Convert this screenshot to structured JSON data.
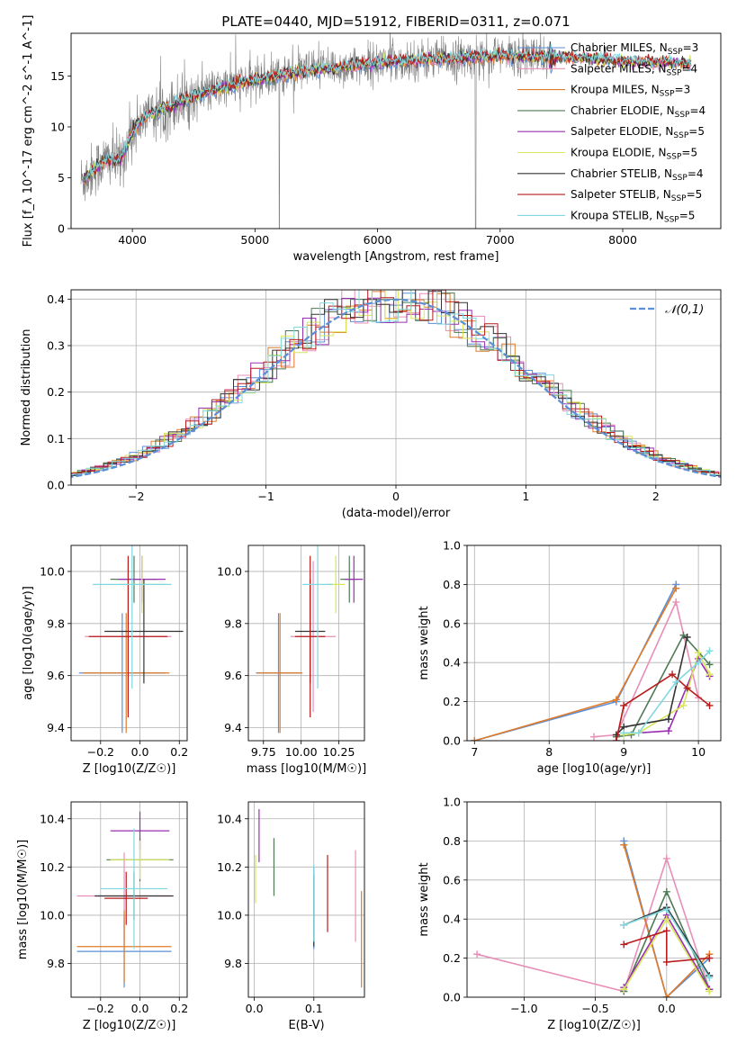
{
  "figure": {
    "title": "PLATE=0440, MJD=51912, FIBERID=0311, z=0.071"
  },
  "models": [
    {
      "name": "Chabrier MILES",
      "nssp": "3",
      "color": "#5b8fd6"
    },
    {
      "name": "Salpeter MILES",
      "nssp": "4",
      "color": "#e88fb8"
    },
    {
      "name": "Kroupa MILES",
      "nssp": "3",
      "color": "#e07b2a"
    },
    {
      "name": "Chabrier ELODIE",
      "nssp": "4",
      "color": "#4f7a56"
    },
    {
      "name": "Salpeter ELODIE",
      "nssp": "5",
      "color": "#9a2fb3"
    },
    {
      "name": "Kroupa ELODIE",
      "nssp": "5",
      "color": "#d8e65a"
    },
    {
      "name": "Chabrier STELIB",
      "nssp": "4",
      "color": "#333333"
    },
    {
      "name": "Salpeter STELIB",
      "nssp": "5",
      "color": "#b81c1c"
    },
    {
      "name": "Kroupa STELIB",
      "nssp": "5",
      "color": "#80d8e0"
    }
  ],
  "chart_data": [
    {
      "id": "spectrum",
      "type": "line",
      "xlabel": "wavelength [Angstrom, rest frame]",
      "ylabel": "Flux [f_λ 10^-17 erg cm^-2 s^-1 A^-1]",
      "xlim": [
        3500,
        8800
      ],
      "ylim": [
        0,
        19.2
      ],
      "xticks": [
        4000,
        5000,
        6000,
        7000,
        8000
      ],
      "yticks": [
        0,
        5,
        10,
        15
      ],
      "data_color": "#808080",
      "continuum": {
        "x": [
          3600,
          3700,
          3800,
          3900,
          4000,
          4100,
          4300,
          4500,
          4800,
          5000,
          5300,
          5600,
          6000,
          6300,
          6600,
          7000,
          7300,
          7600,
          8000,
          8400,
          8550
        ],
        "y": [
          4.8,
          6.0,
          6.8,
          6.6,
          9.6,
          11.0,
          12.0,
          13.0,
          14.1,
          14.6,
          15.3,
          15.7,
          16.3,
          16.6,
          16.7,
          17.0,
          16.9,
          16.8,
          16.5,
          16.3,
          16.2
        ]
      },
      "grid": false,
      "legend": "top-right"
    },
    {
      "id": "residuals",
      "type": "histogram",
      "xlabel": "(data-model)/error",
      "ylabel": "Normed distribution",
      "xlim": [
        -2.5,
        2.5
      ],
      "ylim": [
        0,
        0.42
      ],
      "xticks": [
        -2,
        -1,
        0,
        1,
        2
      ],
      "yticks": [
        0.0,
        0.1,
        0.2,
        0.3,
        0.4
      ],
      "reference": {
        "name": "𝒩(0,1)",
        "mean": 0,
        "sigma": 1,
        "color": "#5b8fd6"
      },
      "grid": true,
      "legend": "top-right"
    },
    {
      "id": "age_vs_Z",
      "type": "errorbar",
      "xlabel": "Z [log10(Z/Z☉)]",
      "ylabel": "age [log10(age/yr)]",
      "xlim": [
        -0.35,
        0.24
      ],
      "ylim": [
        9.35,
        10.1
      ],
      "xticks": [
        -0.2,
        0.0,
        0.2
      ],
      "yticks": [
        9.4,
        9.6,
        9.8,
        10.0
      ],
      "points": [
        {
          "x": -0.09,
          "xerr": 0.22,
          "y": 9.61,
          "yerr": 0.23
        },
        {
          "x": -0.06,
          "xerr": 0.22,
          "y": 9.75,
          "yerr": 0.29
        },
        {
          "x": -0.07,
          "xerr": 0.22,
          "y": 9.61,
          "yerr": 0.23
        },
        {
          "x": -0.03,
          "xerr": 0.12,
          "y": 9.97,
          "yerr": 0.09
        },
        {
          "x": 0.01,
          "xerr": 0.12,
          "y": 9.97,
          "yerr": 0.09
        },
        {
          "x": 0.01,
          "xerr": 0.12,
          "y": 9.95,
          "yerr": 0.11
        },
        {
          "x": 0.02,
          "xerr": 0.2,
          "y": 9.77,
          "yerr": 0.2
        },
        {
          "x": -0.06,
          "xerr": 0.2,
          "y": 9.75,
          "yerr": 0.31
        },
        {
          "x": -0.04,
          "xerr": 0.2,
          "y": 9.95,
          "yerr": 0.4
        }
      ],
      "grid": true
    },
    {
      "id": "age_vs_mass",
      "type": "errorbar",
      "xlabel": "mass [log10(M/M☉)]",
      "ylabel": "",
      "xlim": [
        9.65,
        10.42
      ],
      "ylim": [
        9.35,
        10.1
      ],
      "xticks": [
        9.75,
        10.0,
        10.25
      ],
      "yticks": [
        9.4,
        9.6,
        9.8,
        10.0
      ],
      "points": [
        {
          "x": 9.85,
          "xerr": 0.15,
          "y": 9.61,
          "yerr": 0.23
        },
        {
          "x": 10.08,
          "xerr": 0.15,
          "y": 9.75,
          "yerr": 0.29
        },
        {
          "x": 9.86,
          "xerr": 0.15,
          "y": 9.61,
          "yerr": 0.23
        },
        {
          "x": 10.32,
          "xerr": 0.06,
          "y": 9.97,
          "yerr": 0.09
        },
        {
          "x": 10.35,
          "xerr": 0.06,
          "y": 9.97,
          "yerr": 0.09
        },
        {
          "x": 10.23,
          "xerr": 0.06,
          "y": 9.95,
          "yerr": 0.11
        },
        {
          "x": 10.06,
          "xerr": 0.1,
          "y": 9.77,
          "yerr": 0.2
        },
        {
          "x": 10.06,
          "xerr": 0.1,
          "y": 9.75,
          "yerr": 0.31
        },
        {
          "x": 10.11,
          "xerr": 0.1,
          "y": 9.95,
          "yerr": 0.4
        }
      ],
      "grid": true
    },
    {
      "id": "weight_vs_age",
      "type": "line",
      "xlabel": "age [log10(age/yr)]",
      "ylabel": "mass weight",
      "xlim": [
        6.9,
        10.3
      ],
      "ylim": [
        0,
        1.0
      ],
      "xticks": [
        7,
        8,
        9,
        10
      ],
      "yticks": [
        0.0,
        0.2,
        0.4,
        0.6,
        0.8,
        1.0
      ],
      "series": [
        {
          "model": 0,
          "x": [
            7.0,
            8.9,
            9.7
          ],
          "y": [
            0.0,
            0.2,
            0.8
          ]
        },
        {
          "model": 1,
          "x": [
            8.6,
            8.9,
            9.7,
            10.0
          ],
          "y": [
            0.02,
            0.03,
            0.71,
            0.22
          ]
        },
        {
          "model": 2,
          "x": [
            7.0,
            8.9,
            9.7
          ],
          "y": [
            0.0,
            0.21,
            0.78
          ]
        },
        {
          "model": 3,
          "x": [
            8.9,
            9.1,
            9.8,
            10.15
          ],
          "y": [
            0.02,
            0.03,
            0.54,
            0.39
          ]
        },
        {
          "model": 4,
          "x": [
            9.2,
            9.6,
            10.0,
            10.15
          ],
          "y": [
            0.04,
            0.05,
            0.42,
            0.33
          ]
        },
        {
          "model": 5,
          "x": [
            9.0,
            9.2,
            9.8,
            10.0,
            10.15
          ],
          "y": [
            0.03,
            0.04,
            0.18,
            0.45,
            0.34
          ]
        },
        {
          "model": 6,
          "x": [
            8.9,
            9.0,
            9.6,
            9.85
          ],
          "y": [
            0.03,
            0.07,
            0.11,
            0.53
          ]
        },
        {
          "model": 7,
          "x": [
            8.9,
            9.0,
            9.65,
            9.85,
            10.15
          ],
          "y": [
            0.0,
            0.18,
            0.34,
            0.27,
            0.18
          ]
        },
        {
          "model": 8,
          "x": [
            9.0,
            9.2,
            9.7,
            10.0,
            10.15
          ],
          "y": [
            0.04,
            0.04,
            0.3,
            0.4,
            0.46
          ]
        }
      ],
      "grid": true
    },
    {
      "id": "mass_vs_Z",
      "type": "errorbar",
      "xlabel": "Z [log10(Z/Z☉)]",
      "ylabel": "mass [log10(M/M☉)]",
      "xlim": [
        -0.35,
        0.24
      ],
      "ylim": [
        9.66,
        10.47
      ],
      "xticks": [
        -0.2,
        0.0,
        0.2
      ],
      "yticks": [
        9.8,
        10.0,
        10.2,
        10.4
      ],
      "points": [
        {
          "x": -0.08,
          "xerr": 0.24,
          "y": 9.85,
          "yerr": 0.15
        },
        {
          "x": -0.08,
          "xerr": 0.24,
          "y": 10.08,
          "yerr": 0.18
        },
        {
          "x": -0.08,
          "xerr": 0.24,
          "y": 9.87,
          "yerr": 0.15
        },
        {
          "x": 0.0,
          "xerr": 0.17,
          "y": 10.23,
          "yerr": 0.09
        },
        {
          "x": 0.0,
          "xerr": 0.15,
          "y": 10.35,
          "yerr": 0.08
        },
        {
          "x": 0.0,
          "xerr": 0.15,
          "y": 10.23,
          "yerr": 0.08
        },
        {
          "x": -0.03,
          "xerr": 0.2,
          "y": 10.08,
          "yerr": 0.1
        },
        {
          "x": -0.07,
          "xerr": 0.11,
          "y": 10.07,
          "yerr": 0.11
        },
        {
          "x": -0.03,
          "xerr": 0.17,
          "y": 10.11,
          "yerr": 0.25
        }
      ],
      "grid": true
    },
    {
      "id": "mass_vs_ebv",
      "type": "errorbar",
      "xlabel": "E(B-V)",
      "ylabel": "",
      "xlim": [
        -0.01,
        0.185
      ],
      "ylim": [
        9.66,
        10.47
      ],
      "xticks": [
        0.0,
        0.1
      ],
      "yticks": [
        9.8,
        10.0,
        10.2,
        10.4
      ],
      "points": [
        {
          "x": 0.1,
          "xerr": 0,
          "y": 10.03,
          "yerr": 0.17
        },
        {
          "x": 0.17,
          "xerr": 0,
          "y": 10.08,
          "yerr": 0.19
        },
        {
          "x": 0.18,
          "xerr": 0,
          "y": 9.9,
          "yerr": 0.2
        },
        {
          "x": 0.033,
          "xerr": 0,
          "y": 10.2,
          "yerr": 0.12
        },
        {
          "x": 0.008,
          "xerr": 0,
          "y": 10.33,
          "yerr": 0.11
        },
        {
          "x": 0.002,
          "xerr": 0,
          "y": 10.15,
          "yerr": 0.1
        },
        {
          "x": 0.1,
          "xerr": 0,
          "y": 10.02,
          "yerr": 0.15
        },
        {
          "x": 0.123,
          "xerr": 0,
          "y": 10.09,
          "yerr": 0.16
        },
        {
          "x": 0.1,
          "xerr": 0,
          "y": 10.05,
          "yerr": 0.16
        }
      ],
      "grid": true
    },
    {
      "id": "weight_vs_Z",
      "type": "line",
      "xlabel": "Z [log10(Z/Z☉)]",
      "ylabel": "mass weight",
      "xlim": [
        -1.4,
        0.38
      ],
      "ylim": [
        0,
        1.0
      ],
      "xticks": [
        -1.0,
        -0.5,
        0.0
      ],
      "yticks": [
        0.0,
        0.2,
        0.4,
        0.6,
        0.8,
        1.0
      ],
      "series": [
        {
          "model": 0,
          "x": [
            -0.3,
            0.0,
            0.3
          ],
          "y": [
            0.8,
            0.0,
            0.2
          ]
        },
        {
          "model": 1,
          "x": [
            -1.33,
            -0.3,
            0.0,
            0.3
          ],
          "y": [
            0.22,
            0.03,
            0.71,
            0.04
          ]
        },
        {
          "model": 2,
          "x": [
            -0.3,
            0.0,
            0.3
          ],
          "y": [
            0.78,
            0.0,
            0.22
          ]
        },
        {
          "model": 3,
          "x": [
            -0.3,
            0.0,
            0.3
          ],
          "y": [
            0.03,
            0.54,
            0.04
          ]
        },
        {
          "model": 4,
          "x": [
            -0.3,
            0.0,
            0.3
          ],
          "y": [
            0.05,
            0.42,
            0.04
          ]
        },
        {
          "model": 5,
          "x": [
            -0.3,
            0.0,
            0.3
          ],
          "y": [
            0.04,
            0.4,
            0.03
          ]
        },
        {
          "model": 6,
          "x": [
            -0.3,
            0.0,
            0.3
          ],
          "y": [
            0.37,
            0.46,
            0.11
          ]
        },
        {
          "model": 7,
          "x": [
            -0.3,
            0.0,
            0.0,
            0.3
          ],
          "y": [
            0.27,
            0.34,
            0.18,
            0.2
          ]
        },
        {
          "model": 8,
          "x": [
            -0.3,
            0.0,
            0.3
          ],
          "y": [
            0.37,
            0.45,
            0.1
          ]
        }
      ],
      "grid": true
    }
  ]
}
